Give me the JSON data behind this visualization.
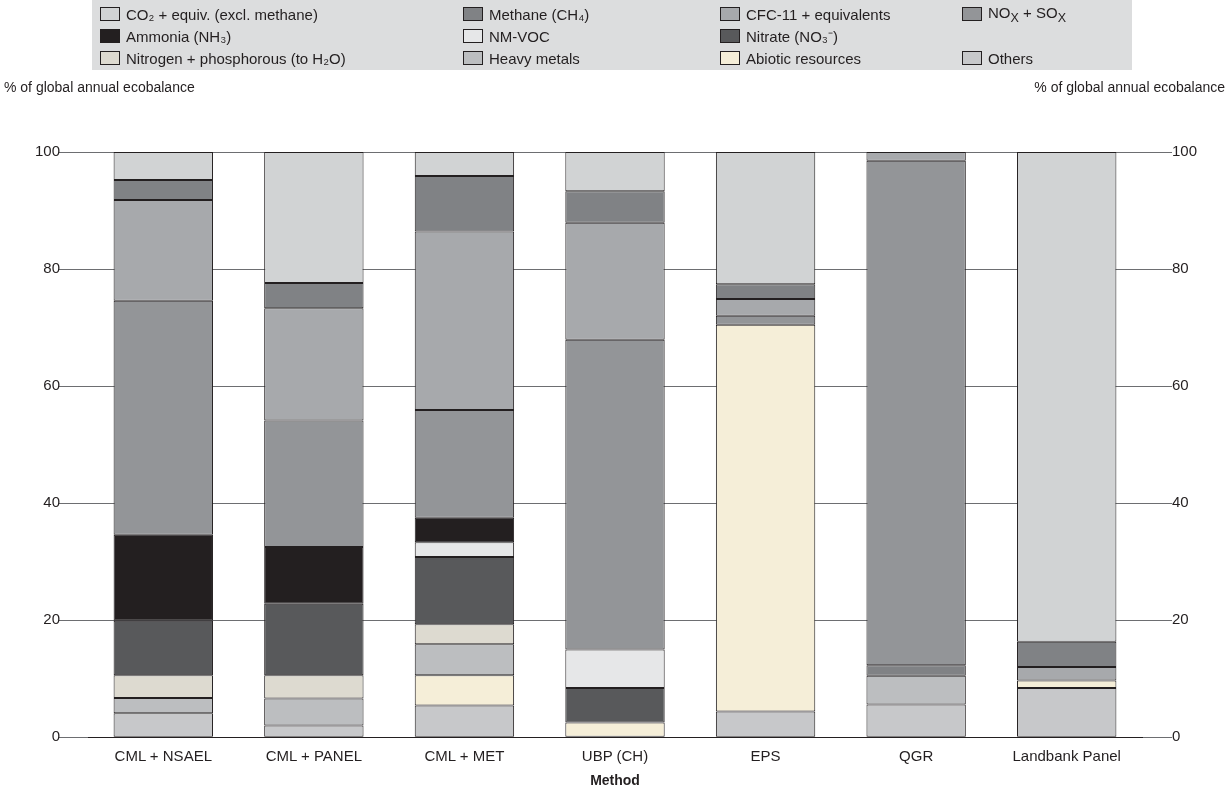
{
  "chart_data": {
    "type": "bar",
    "xlabel": "Method",
    "ylabel": "% of global annual ecobalance",
    "y2label": "% of global annual ecobalance",
    "categories": [
      "CML + NSAEL",
      "CML + PANEL",
      "CML + MET",
      "UBP (CH)",
      "EPS",
      "QGR",
      "Landbank Panel"
    ],
    "ylim": [
      0,
      100
    ],
    "yticks": [
      0,
      20,
      40,
      60,
      80,
      100
    ],
    "y2lim": [
      0,
      100
    ],
    "y2ticks": [
      0,
      20,
      40,
      60,
      80,
      100
    ],
    "grid": "y",
    "legend": "top",
    "series": [
      {
        "name": "CO₂ + equiv. (excl. methane)",
        "color": "#d1d3d4",
        "base": [
          95.2,
          77.6,
          95.9,
          93.3,
          77.4,
          null,
          16.3
        ],
        "values": [
          4.8,
          22.4,
          4.1,
          6.7,
          22.6,
          null,
          83.7
        ]
      },
      {
        "name": "Methane (CH₄)",
        "color": "#808285",
        "base": [
          91.8,
          73.3,
          86.4,
          87.9,
          74.9,
          10.5,
          12.0
        ],
        "values": [
          3.4,
          4.3,
          9.5,
          5.4,
          2.5,
          1.8,
          4.3
        ]
      },
      {
        "name": "CFC-11 + equivalents",
        "color": "#a7a9ac",
        "base": [
          74.6,
          54.1,
          55.9,
          67.9,
          72.0,
          98.5,
          9.7
        ],
        "values": [
          17.2,
          19.2,
          30.5,
          20.0,
          2.9,
          1.5,
          2.3
        ]
      },
      {
        "name": "NO$_{X}$ + SO$_{X}$",
        "color": "#939598",
        "base": [
          34.6,
          32.5,
          37.5,
          15.0,
          70.5,
          12.3,
          null
        ],
        "values": [
          40.0,
          21.6,
          18.4,
          52.9,
          1.5,
          86.2,
          null
        ]
      },
      {
        "name": "Ammonia (NH₃)",
        "color": "#231f20",
        "base": [
          19.9,
          22.8,
          33.3,
          null,
          null,
          null,
          null
        ],
        "values": [
          14.7,
          9.7,
          4.2,
          null,
          null,
          null,
          null
        ]
      },
      {
        "name": "NM-VOC",
        "color": "#e6e7e8",
        "base": [
          null,
          null,
          30.8,
          8.4,
          null,
          null,
          null
        ],
        "values": [
          null,
          null,
          2.5,
          6.6,
          null,
          null,
          null
        ]
      },
      {
        "name": "Nitrate (NO₃⁻)",
        "color": "#58595b",
        "base": [
          10.6,
          10.6,
          19.3,
          2.5,
          null,
          null,
          null
        ],
        "values": [
          9.3,
          12.2,
          11.5,
          5.9,
          null,
          null,
          null
        ]
      },
      {
        "name": "Nitrogen + phosphorous (to H₂O)",
        "color": "#dddad0",
        "base": [
          6.7,
          6.6,
          15.9,
          null,
          null,
          null,
          null
        ],
        "values": [
          3.9,
          4.0,
          3.4,
          null,
          null,
          null,
          null
        ]
      },
      {
        "name": "Heavy metals",
        "color": "#bcbec0",
        "base": [
          4.1,
          2.0,
          10.6,
          null,
          null,
          5.6,
          null
        ],
        "values": [
          2.6,
          4.6,
          5.3,
          null,
          null,
          4.9,
          null
        ]
      },
      {
        "name": "Abiotic resources",
        "color": "#f5eed8",
        "base": [
          null,
          null,
          5.4,
          0,
          4.4,
          null,
          8.4
        ],
        "values": [
          null,
          null,
          5.2,
          2.5,
          66.1,
          null,
          1.3
        ]
      },
      {
        "name": "Others",
        "color": "#c7c8ca",
        "base": [
          0,
          0,
          0,
          null,
          0,
          0,
          0
        ],
        "values": [
          4.1,
          2.0,
          5.4,
          null,
          4.4,
          5.6,
          8.4
        ]
      }
    ]
  }
}
